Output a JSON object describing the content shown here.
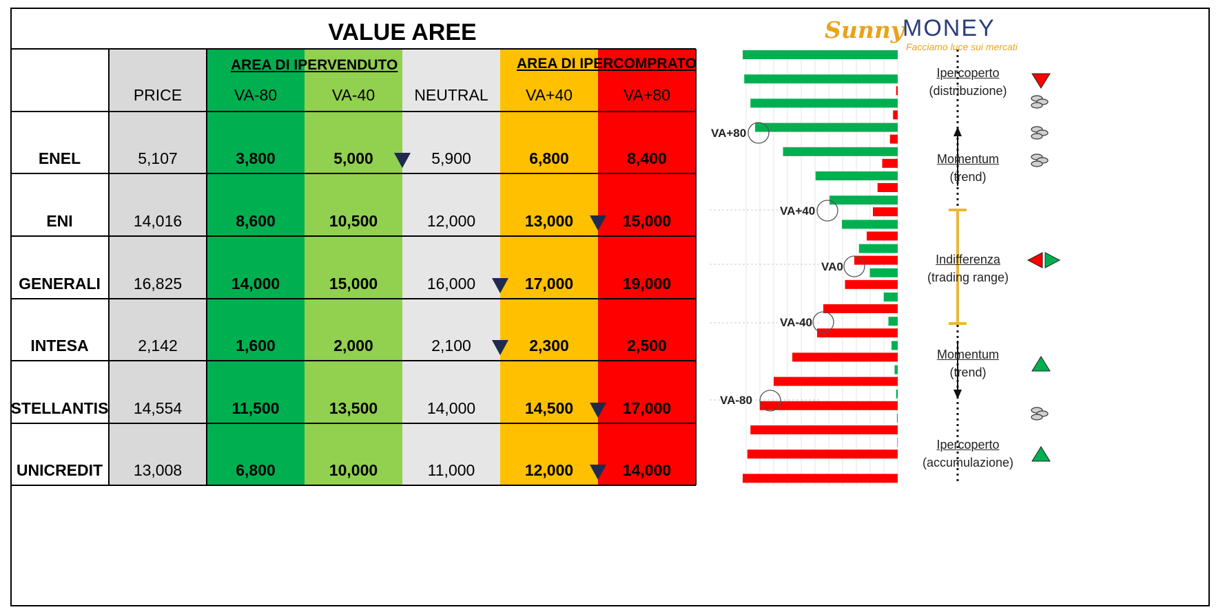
{
  "title": "VALUE AREE",
  "area_labels": {
    "oversold": "AREA DI IPERVENDUTO",
    "overbought": "AREA DI IPERCOMPRATO"
  },
  "columns": [
    "",
    "PRICE",
    "VA-80",
    "VA-40",
    "NEUTRAL",
    "VA+40",
    "VA+80"
  ],
  "colors": {
    "price_bg": "#d9d9d9",
    "va80_bg": "#00b050",
    "va40_bg": "#92d050",
    "neutral_bg": "#e6e6e6",
    "vap40_bg": "#ffc000",
    "vap80_bg": "#ff0000",
    "marker": "#1f2a4f"
  },
  "rows": [
    {
      "name": "ENEL",
      "price": "5,107",
      "va_m80": "3,800",
      "va_m40": "5,000",
      "neutral": "5,900",
      "va_p40": "6,800",
      "va_p80": "8,400",
      "marker_after": "va_m40"
    },
    {
      "name": "ENI",
      "price": "14,016",
      "va_m80": "8,600",
      "va_m40": "10,500",
      "neutral": "12,000",
      "va_p40": "13,000",
      "va_p80": "15,000",
      "marker_after": "va_p40"
    },
    {
      "name": "GENERALI",
      "price": "16,825",
      "va_m80": "14,000",
      "va_m40": "15,000",
      "neutral": "16,000",
      "va_p40": "17,000",
      "va_p80": "19,000",
      "marker_after": "neutral"
    },
    {
      "name": "INTESA",
      "price": "2,142",
      "va_m80": "1,600",
      "va_m40": "2,000",
      "neutral": "2,100",
      "va_p40": "2,300",
      "va_p80": "2,500",
      "marker_after": "neutral"
    },
    {
      "name": "STELLANTIS",
      "price": "14,554",
      "va_m80": "11,500",
      "va_m40": "13,500",
      "neutral": "14,000",
      "va_p40": "14,500",
      "va_p80": "17,000",
      "marker_after": "va_p40"
    },
    {
      "name": "UNICREDIT",
      "price": "13,008",
      "va_m80": "6,800",
      "va_m40": "10,000",
      "neutral": "11,000",
      "va_p40": "12,000",
      "va_p80": "14,000",
      "marker_after": "va_p40"
    }
  ],
  "logo": {
    "brand_a": "Sunny",
    "brand_b": "MONEY",
    "tagline": "Facciamo luce sui mercati"
  },
  "diagram": {
    "va_tags": [
      "VA+80",
      "VA+40",
      "VA0",
      "VA-40",
      "VA-80"
    ],
    "zones": [
      {
        "line1": "Ipercoperto",
        "line2": "(distribuzione)",
        "icon": "red-down-triangle-icon"
      },
      {
        "line1": "Momentum",
        "line2": "(trend)",
        "icon": "coins-icon"
      },
      {
        "line1": "Indifferenza",
        "line2": "(trading range)",
        "icon": "red-green-arrows-icon"
      },
      {
        "line1": "Momentum",
        "line2": "(trend)",
        "icon": "green-up-triangle-icon"
      },
      {
        "line1": "Ipercoperto",
        "line2": "(accumulazione)",
        "icon": "green-up-triangle-icon"
      }
    ],
    "bar_colors": {
      "call": "#00b050",
      "put": "#ff0000"
    },
    "bars": [
      {
        "call": 1.0,
        "put": 0.0
      },
      {
        "call": 0.99,
        "put": 0.01
      },
      {
        "call": 0.95,
        "put": 0.03
      },
      {
        "call": 0.92,
        "put": 0.05
      },
      {
        "call": 0.74,
        "put": 0.1
      },
      {
        "call": 0.53,
        "put": 0.13
      },
      {
        "call": 0.44,
        "put": 0.16
      },
      {
        "call": 0.36,
        "put": 0.2
      },
      {
        "call": 0.25,
        "put": 0.28
      },
      {
        "call": 0.18,
        "put": 0.34
      },
      {
        "call": 0.09,
        "put": 0.48
      },
      {
        "call": 0.06,
        "put": 0.52
      },
      {
        "call": 0.04,
        "put": 0.68
      },
      {
        "call": 0.02,
        "put": 0.8
      },
      {
        "call": 0.01,
        "put": 0.89
      },
      {
        "call": 0.005,
        "put": 0.95
      },
      {
        "call": 0.003,
        "put": 0.97
      },
      {
        "call": 0.0,
        "put": 1.0
      }
    ]
  }
}
